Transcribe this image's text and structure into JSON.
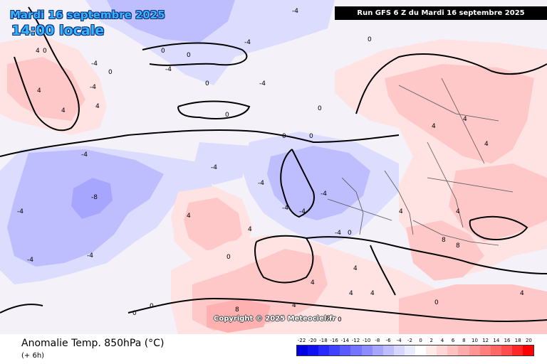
{
  "header": {
    "date": "Mardi 16 septembre 2025",
    "time": "14:00 locale",
    "run": "Run GFS 6 Z du Mardi 16 septembre 2025"
  },
  "copyright": "Copyright © 2025 Meteociel.fr",
  "footer": {
    "title": "Anomalie Temp. 850hPa (°C)",
    "subtitle": "(+ 6h)"
  },
  "scale": {
    "ticks": [
      "-22",
      "-20",
      "-18",
      "-16",
      "-14",
      "-12",
      "-10",
      "-8",
      "-6",
      "-4",
      "-2",
      "0",
      "2",
      "4",
      "6",
      "8",
      "10",
      "12",
      "14",
      "16",
      "18",
      "20"
    ],
    "colors": [
      "#0000e0",
      "#1010f0",
      "#2828ff",
      "#4040ff",
      "#5a5aff",
      "#7474ff",
      "#8c8cff",
      "#a6a6ff",
      "#bebeff",
      "#d6d6ff",
      "#ebebff",
      "#ffffff",
      "#ffeaea",
      "#ffd6d6",
      "#ffc0c0",
      "#ffaaaa",
      "#ff9494",
      "#ff7e7e",
      "#ff6666",
      "#ff4c4c",
      "#ff2828",
      "#ff0000"
    ]
  },
  "map": {
    "colors": {
      "neutral": "#f4f2f8",
      "cold1": "#dcdcff",
      "cold2": "#bebeff",
      "cold3": "#a6a6ff",
      "warm1": "#ffe2e2",
      "warm2": "#ffc8c8",
      "warm3": "#ffb0b0",
      "coast": "#000000",
      "border": "#555555"
    },
    "contour_labels": [
      "-8",
      "-4",
      "-4",
      "-4",
      "-4",
      "-4",
      "-4",
      "-4",
      "-4",
      "-4",
      "-4",
      "-4",
      "-4",
      "-4",
      "-4",
      "-4",
      "-4",
      "-4",
      "0",
      "0",
      "0",
      "0",
      "0",
      "0",
      "0",
      "0",
      "0",
      "0",
      "0",
      "0",
      "0",
      "0",
      "0",
      "0",
      "4",
      "4",
      "4",
      "4",
      "4",
      "4",
      "4",
      "4",
      "4",
      "4",
      "4",
      "4",
      "4",
      "4",
      "4",
      "4",
      "4",
      "8",
      "8",
      "8",
      "8"
    ]
  }
}
